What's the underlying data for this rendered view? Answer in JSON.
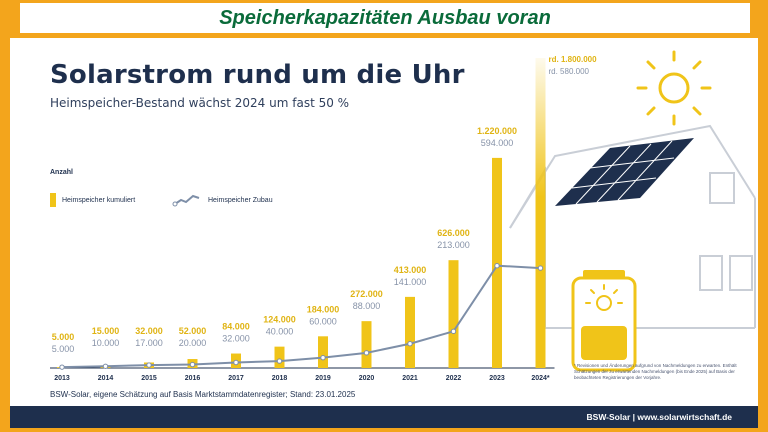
{
  "banner": {
    "title": "Speicherkapazitäten Ausbau voran"
  },
  "header": {
    "title": "Solarstrom rund um die Uhr",
    "subtitle": "Heimspeicher-Bestand wächst 2024 um fast 50 %"
  },
  "legend": {
    "title": "Anzahl",
    "bar_label": "Heimspeicher kumuliert",
    "line_label": "Heimspeicher Zubau"
  },
  "colors": {
    "bar": "#f0c419",
    "line": "#7e8fa8",
    "accent_text": "#e0b414",
    "line_text": "#8793a8",
    "navy": "#1e2f4d"
  },
  "chart_data": {
    "type": "bar",
    "categories": [
      "2013",
      "2014",
      "2015",
      "2016",
      "2017",
      "2018",
      "2019",
      "2020",
      "2021",
      "2022",
      "2023",
      "2024*"
    ],
    "series": [
      {
        "name": "Heimspeicher kumuliert",
        "type": "bar",
        "values": [
          5000,
          15000,
          32000,
          52000,
          84000,
          124000,
          184000,
          272000,
          413000,
          626000,
          1220000,
          1800000
        ],
        "labels": [
          "5.000",
          "15.000",
          "32.000",
          "52.000",
          "84.000",
          "124.000",
          "184.000",
          "272.000",
          "413.000",
          "626.000",
          "1.220.000",
          "rd. 1.800.000"
        ]
      },
      {
        "name": "Heimspeicher Zubau",
        "type": "line",
        "values": [
          5000,
          10000,
          17000,
          20000,
          32000,
          40000,
          60000,
          88000,
          141000,
          213000,
          594000,
          580000
        ],
        "labels": [
          "5.000",
          "10.000",
          "17.000",
          "20.000",
          "32.000",
          "40.000",
          "60.000",
          "88.000",
          "141.000",
          "213.000",
          "594.000",
          "rd. 580.000"
        ]
      }
    ],
    "ylim": [
      0,
      1800000
    ],
    "grid": false,
    "legend_position": "left"
  },
  "footnote": "* Revisionen und Änderungen aufgrund von Nachmeldungen zu erwarten. Enthält Schätzungen der zu erwartenden Nachmeldungen (bis Ende 2025) auf Basis der beobachteten Registrierungen der Vorjahre.",
  "source": "BSW-Solar, eigene Schätzung auf Basis Marktstammdatenregister; Stand: 23.01.2025",
  "footer": {
    "brand": "BSW-Solar | www.solarwirtschaft.de"
  },
  "icons": [
    "sun-icon",
    "house-icon",
    "solar-panel-icon",
    "battery-icon"
  ]
}
